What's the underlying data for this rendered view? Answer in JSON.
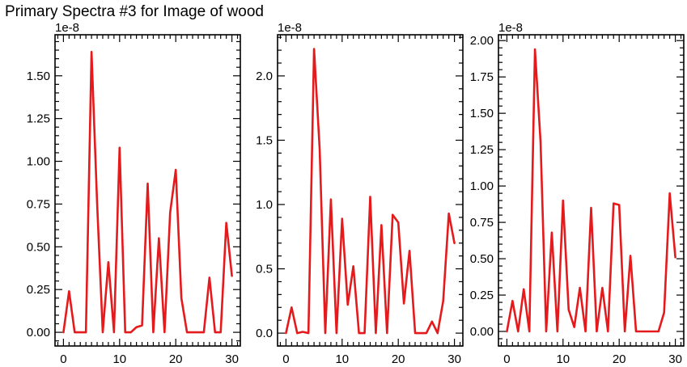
{
  "title": "Primary Spectra #3 for Image of wood",
  "colors": {
    "line": "#e41a1c",
    "axes": "#000000",
    "background": "#ffffff"
  },
  "chart_data": [
    {
      "type": "line",
      "xlabel": "",
      "ylabel": "",
      "offset_label": "1e-8",
      "xlim": [
        -1.5,
        31.5
      ],
      "ylim": [
        -0.08,
        1.74
      ],
      "xticks": [
        0,
        10,
        20,
        30
      ],
      "xtick_labels": [
        "0",
        "10",
        "20",
        "30"
      ],
      "yticks": [
        0.0,
        0.25,
        0.5,
        0.75,
        1.0,
        1.25,
        1.5
      ],
      "ytick_labels": [
        "0.00",
        "0.25",
        "0.50",
        "0.75",
        "1.00",
        "1.25",
        "1.50"
      ],
      "grid": false,
      "series": [
        {
          "x": [
            0,
            1,
            2,
            3,
            4,
            5,
            6,
            7,
            8,
            9,
            10,
            11,
            12,
            13,
            14,
            15,
            16,
            17,
            18,
            19,
            20,
            21,
            22,
            23,
            24,
            25,
            26,
            27,
            28,
            29,
            30
          ],
          "values": [
            0.0,
            0.24,
            0.0,
            0.0,
            0.0,
            1.64,
            0.75,
            0.0,
            0.41,
            0.0,
            1.08,
            0.0,
            0.0,
            0.03,
            0.04,
            0.87,
            0.0,
            0.55,
            0.0,
            0.7,
            0.95,
            0.2,
            0.0,
            0.0,
            0.0,
            0.0,
            0.32,
            0.0,
            0.0,
            0.64,
            0.33
          ]
        }
      ]
    },
    {
      "type": "line",
      "xlabel": "",
      "ylabel": "",
      "offset_label": "1e-8",
      "xlim": [
        -1.5,
        31.5
      ],
      "ylim": [
        -0.1,
        2.32
      ],
      "xticks": [
        0,
        10,
        20,
        30
      ],
      "xtick_labels": [
        "0",
        "10",
        "20",
        "30"
      ],
      "yticks": [
        0.0,
        0.5,
        1.0,
        1.5,
        2.0
      ],
      "ytick_labels": [
        "0.0",
        "0.5",
        "1.0",
        "1.5",
        "2.0"
      ],
      "grid": false,
      "series": [
        {
          "x": [
            0,
            1,
            2,
            3,
            4,
            5,
            6,
            7,
            8,
            9,
            10,
            11,
            12,
            13,
            14,
            15,
            16,
            17,
            18,
            19,
            20,
            21,
            22,
            23,
            24,
            25,
            26,
            27,
            28,
            29,
            30
          ],
          "values": [
            0.0,
            0.2,
            0.0,
            0.01,
            0.0,
            2.21,
            1.43,
            0.0,
            1.04,
            0.0,
            0.89,
            0.22,
            0.52,
            0.0,
            0.0,
            1.06,
            0.0,
            0.84,
            0.0,
            0.92,
            0.86,
            0.23,
            0.64,
            0.0,
            0.0,
            0.0,
            0.09,
            0.0,
            0.25,
            0.93,
            0.7
          ]
        }
      ]
    },
    {
      "type": "line",
      "xlabel": "",
      "ylabel": "",
      "offset_label": "1e-8",
      "xlim": [
        -1.5,
        31.5
      ],
      "ylim": [
        -0.1,
        2.04
      ],
      "xticks": [
        0,
        10,
        20,
        30
      ],
      "xtick_labels": [
        "0",
        "10",
        "20",
        "30"
      ],
      "yticks": [
        0.0,
        0.25,
        0.5,
        0.75,
        1.0,
        1.25,
        1.5,
        1.75,
        2.0
      ],
      "ytick_labels": [
        "0.00",
        "0.25",
        "0.50",
        "0.75",
        "1.00",
        "1.25",
        "1.50",
        "1.75",
        "2.00"
      ],
      "grid": false,
      "series": [
        {
          "x": [
            0,
            1,
            2,
            3,
            4,
            5,
            6,
            7,
            8,
            9,
            10,
            11,
            12,
            13,
            14,
            15,
            16,
            17,
            18,
            19,
            20,
            21,
            22,
            23,
            24,
            25,
            26,
            27,
            28,
            29,
            30
          ],
          "values": [
            0.0,
            0.21,
            0.0,
            0.29,
            0.0,
            1.94,
            1.3,
            0.0,
            0.68,
            0.0,
            0.9,
            0.15,
            0.03,
            0.3,
            0.0,
            0.85,
            0.0,
            0.3,
            0.0,
            0.88,
            0.87,
            0.0,
            0.52,
            0.0,
            0.0,
            0.0,
            0.0,
            0.0,
            0.13,
            0.95,
            0.51
          ]
        }
      ]
    }
  ]
}
